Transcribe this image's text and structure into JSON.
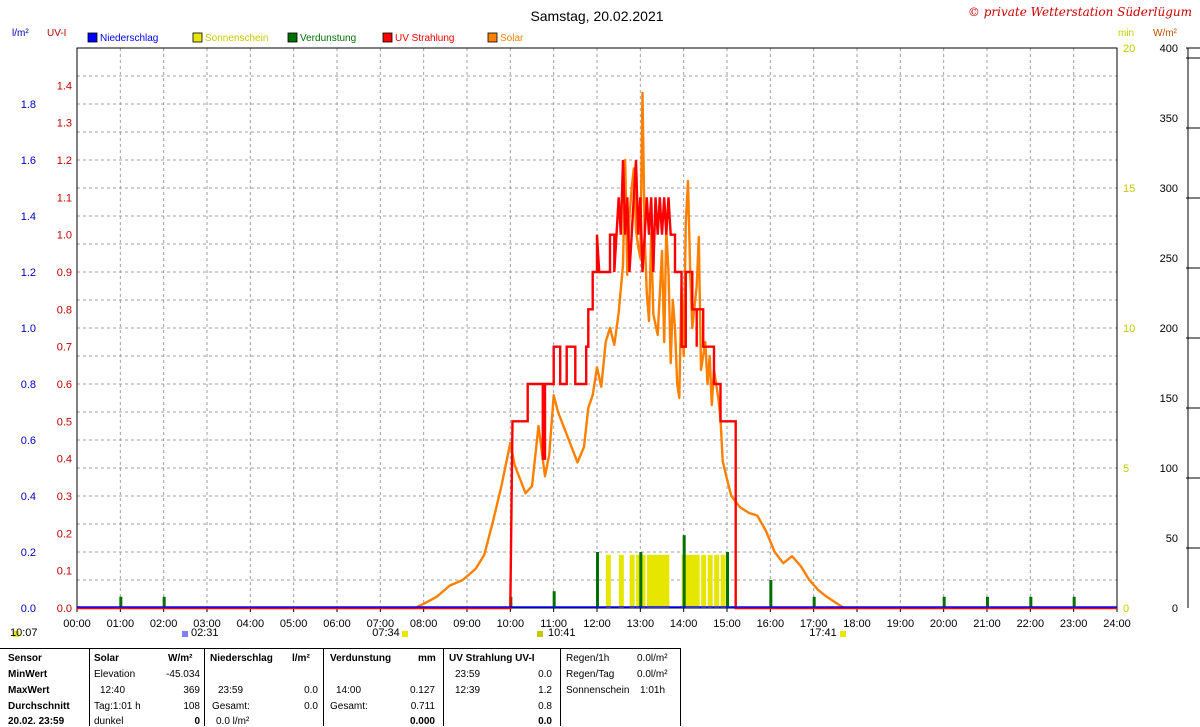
{
  "title": "Samstag, 20.02.2021",
  "copyright": "© private Wetterstation Süderlügum",
  "left_units": [
    "l/m²",
    "UV-I"
  ],
  "right_units": [
    "min",
    "W/m²"
  ],
  "legend": [
    {
      "label": "Niederschlag",
      "color": "#0000ff"
    },
    {
      "label": "Sonnenschein",
      "color": "#e6e600"
    },
    {
      "label": "Verdunstung",
      "color": "#007000"
    },
    {
      "label": "UV Strahlung",
      "color": "#ff0000"
    },
    {
      "label": "Solar",
      "color": "#ff8000"
    }
  ],
  "colors": {
    "rain_axis": "#0000c0",
    "uv_axis": "#c00000",
    "sun_axis": "#c8c800",
    "solar": "#ff8000",
    "uv": "#ff0000",
    "sunshine": "#e6e600",
    "evap": "#007000",
    "grid": "#a0a0a0"
  },
  "time_markers": {
    "sunrise": "07:34",
    "sunset": "17:41",
    "moonrise": "10:07",
    "moonset": "02:31",
    "noon": "10:41"
  },
  "chart_data": {
    "type": "line",
    "x_range": [
      "00:00",
      "24:00"
    ],
    "xticks": [
      "00:00",
      "01:00",
      "02:00",
      "03:00",
      "04:00",
      "05:00",
      "06:00",
      "07:00",
      "08:00",
      "09:00",
      "10:00",
      "11:00",
      "12:00",
      "13:00",
      "14:00",
      "15:00",
      "16:00",
      "17:00",
      "18:00",
      "19:00",
      "20:00",
      "21:00",
      "22:00",
      "23:00",
      "24:00"
    ],
    "axes": {
      "rain": {
        "unit": "l/m²",
        "ylim": [
          0,
          2.0
        ],
        "ticks": [
          "0.0",
          "0.2",
          "0.4",
          "0.6",
          "0.8",
          "1.0",
          "1.2",
          "1.4",
          "1.6",
          "1.8"
        ]
      },
      "uv": {
        "unit": "UV-I",
        "ylim": [
          0,
          1.5
        ],
        "ticks": [
          "0.0",
          "0.1",
          "0.2",
          "0.3",
          "0.4",
          "0.5",
          "0.6",
          "0.7",
          "0.8",
          "0.9",
          "1.0",
          "1.1",
          "1.2",
          "1.3",
          "1.4"
        ]
      },
      "sunshine": {
        "unit": "min",
        "ylim": [
          0,
          20
        ],
        "ticks": [
          "0",
          "5",
          "10",
          "15",
          "20"
        ]
      },
      "solar": {
        "unit": "W/m²",
        "ylim": [
          0,
          400
        ],
        "ticks": [
          "0",
          "50",
          "100",
          "150",
          "200",
          "250",
          "300",
          "350",
          "400"
        ]
      }
    },
    "series": [
      {
        "name": "Solar",
        "unit": "W/m²",
        "points": [
          [
            7.8,
            0
          ],
          [
            8.0,
            3
          ],
          [
            8.3,
            8
          ],
          [
            8.6,
            16
          ],
          [
            8.9,
            20
          ],
          [
            9.2,
            28
          ],
          [
            9.4,
            38
          ],
          [
            9.6,
            62
          ],
          [
            9.8,
            88
          ],
          [
            9.9,
            103
          ],
          [
            10.0,
            118
          ],
          [
            10.1,
            102
          ],
          [
            10.25,
            90
          ],
          [
            10.35,
            82
          ],
          [
            10.5,
            87
          ],
          [
            10.65,
            130
          ],
          [
            10.8,
            94
          ],
          [
            10.9,
            110
          ],
          [
            11.0,
            152
          ],
          [
            11.1,
            140
          ],
          [
            11.3,
            124
          ],
          [
            11.45,
            112
          ],
          [
            11.55,
            104
          ],
          [
            11.7,
            115
          ],
          [
            11.8,
            143
          ],
          [
            11.9,
            152
          ],
          [
            12.0,
            172
          ],
          [
            12.1,
            158
          ],
          [
            12.2,
            190
          ],
          [
            12.3,
            200
          ],
          [
            12.4,
            188
          ],
          [
            12.5,
            211
          ],
          [
            12.6,
            245
          ],
          [
            12.65,
            320
          ],
          [
            12.7,
            238
          ],
          [
            12.75,
            280
          ],
          [
            12.8,
            300
          ],
          [
            12.85,
            314
          ],
          [
            12.9,
            270
          ],
          [
            12.95,
            258
          ],
          [
            13.0,
            250
          ],
          [
            13.05,
            368
          ],
          [
            13.1,
            265
          ],
          [
            13.15,
            225
          ],
          [
            13.2,
            205
          ],
          [
            13.25,
            268
          ],
          [
            13.3,
            210
          ],
          [
            13.4,
            195
          ],
          [
            13.5,
            255
          ],
          [
            13.55,
            190
          ],
          [
            13.6,
            270
          ],
          [
            13.65,
            240
          ],
          [
            13.7,
            175
          ],
          [
            13.75,
            220
          ],
          [
            13.8,
            200
          ],
          [
            13.85,
            160
          ],
          [
            13.9,
            150
          ],
          [
            13.95,
            230
          ],
          [
            14.0,
            180
          ],
          [
            14.05,
            275
          ],
          [
            14.1,
            305
          ],
          [
            14.15,
            240
          ],
          [
            14.2,
            200
          ],
          [
            14.3,
            230
          ],
          [
            14.35,
            265
          ],
          [
            14.4,
            170
          ],
          [
            14.5,
            190
          ],
          [
            14.55,
            160
          ],
          [
            14.6,
            180
          ],
          [
            14.65,
            145
          ],
          [
            14.7,
            170
          ],
          [
            14.8,
            150
          ],
          [
            14.85,
            135
          ],
          [
            14.9,
            105
          ],
          [
            15.0,
            92
          ],
          [
            15.1,
            80
          ],
          [
            15.3,
            72
          ],
          [
            15.5,
            68
          ],
          [
            15.7,
            66
          ],
          [
            15.9,
            55
          ],
          [
            16.1,
            40
          ],
          [
            16.3,
            32
          ],
          [
            16.5,
            37
          ],
          [
            16.7,
            30
          ],
          [
            16.9,
            20
          ],
          [
            17.1,
            13
          ],
          [
            17.3,
            8
          ],
          [
            17.5,
            4
          ],
          [
            17.7,
            0
          ]
        ]
      },
      {
        "name": "UV Strahlung",
        "unit": "UV-I",
        "points": [
          [
            0,
            0
          ],
          [
            10.0,
            0
          ],
          [
            10.05,
            0.5
          ],
          [
            10.4,
            0.5
          ],
          [
            10.4,
            0.6
          ],
          [
            10.75,
            0.6
          ],
          [
            10.75,
            0.4
          ],
          [
            10.8,
            0.4
          ],
          [
            10.8,
            0.6
          ],
          [
            11.0,
            0.6
          ],
          [
            11.0,
            0.7
          ],
          [
            11.15,
            0.7
          ],
          [
            11.15,
            0.6
          ],
          [
            11.3,
            0.6
          ],
          [
            11.3,
            0.7
          ],
          [
            11.5,
            0.7
          ],
          [
            11.5,
            0.6
          ],
          [
            11.75,
            0.6
          ],
          [
            11.75,
            0.7
          ],
          [
            11.8,
            0.7
          ],
          [
            11.8,
            0.8
          ],
          [
            11.9,
            0.8
          ],
          [
            11.9,
            0.9
          ],
          [
            12.0,
            0.9
          ],
          [
            12.0,
            1.0
          ],
          [
            12.05,
            0.9
          ],
          [
            12.3,
            0.9
          ],
          [
            12.3,
            1.0
          ],
          [
            12.4,
            1.0
          ],
          [
            12.4,
            0.9
          ],
          [
            12.5,
            1.1
          ],
          [
            12.55,
            1.0
          ],
          [
            12.6,
            1.2
          ],
          [
            12.65,
            1.0
          ],
          [
            12.7,
            1.1
          ],
          [
            12.75,
            0.9
          ],
          [
            12.8,
            1.0
          ],
          [
            12.85,
            1.1
          ],
          [
            12.9,
            1.2
          ],
          [
            12.95,
            1.0
          ],
          [
            13.0,
            1.1
          ],
          [
            13.05,
            0.9
          ],
          [
            13.1,
            1.0
          ],
          [
            13.15,
            1.1
          ],
          [
            13.2,
            1.0
          ],
          [
            13.25,
            1.1
          ],
          [
            13.3,
            0.9
          ],
          [
            13.35,
            1.1
          ],
          [
            13.4,
            1.0
          ],
          [
            13.45,
            1.1
          ],
          [
            13.5,
            1.0
          ],
          [
            13.55,
            1.1
          ],
          [
            13.6,
            1.0
          ],
          [
            13.65,
            1.1
          ],
          [
            13.7,
            1.0
          ],
          [
            13.8,
            1.0
          ],
          [
            13.8,
            0.9
          ],
          [
            13.95,
            0.9
          ],
          [
            13.95,
            0.7
          ],
          [
            14.05,
            0.7
          ],
          [
            14.05,
            0.9
          ],
          [
            14.2,
            0.9
          ],
          [
            14.2,
            0.8
          ],
          [
            14.3,
            0.8
          ],
          [
            14.3,
            0.7
          ],
          [
            14.3,
            0.8
          ],
          [
            14.45,
            0.8
          ],
          [
            14.45,
            0.7
          ],
          [
            14.7,
            0.7
          ],
          [
            14.7,
            0.6
          ],
          [
            14.85,
            0.6
          ],
          [
            14.85,
            0.5
          ],
          [
            15.2,
            0.5
          ],
          [
            15.2,
            0
          ],
          [
            24,
            0
          ]
        ]
      },
      {
        "name": "Sonnenschein",
        "unit": "min",
        "points": [
          [
            12.25,
            1.9
          ],
          [
            12.55,
            1.9
          ],
          [
            12.8,
            1.9
          ],
          [
            12.95,
            1.9
          ],
          [
            13.05,
            1.9
          ],
          [
            13.2,
            1.9
          ],
          [
            13.3,
            1.9
          ],
          [
            13.4,
            1.9
          ],
          [
            13.5,
            1.9
          ],
          [
            13.6,
            1.9
          ],
          [
            14.0,
            1.9
          ],
          [
            14.1,
            1.9
          ],
          [
            14.2,
            1.9
          ],
          [
            14.3,
            1.9
          ],
          [
            14.45,
            1.9
          ],
          [
            14.6,
            1.9
          ],
          [
            14.75,
            1.9
          ],
          [
            14.9,
            1.9
          ]
        ]
      },
      {
        "name": "Verdunstung",
        "unit": "l/m²",
        "points": [
          [
            1.0,
            0.004
          ],
          [
            2.0,
            0.004
          ],
          [
            10.0,
            0.004
          ],
          [
            11.0,
            0.006
          ],
          [
            12.0,
            0.02
          ],
          [
            13.0,
            0.02
          ],
          [
            14.0,
            0.026
          ],
          [
            15.0,
            0.02
          ],
          [
            16.0,
            0.01
          ],
          [
            17.0,
            0.004
          ],
          [
            20.0,
            0.004
          ],
          [
            21.0,
            0.004
          ],
          [
            22.0,
            0.004
          ],
          [
            23.0,
            0.004
          ]
        ]
      }
    ]
  },
  "stats": {
    "row_labels": [
      "Sensor",
      "MinWert",
      "MaxWert",
      "Durchschnitt",
      "20.02. 23:59"
    ],
    "solar": {
      "header": "Solar",
      "unit": "W/m²",
      "rows": [
        [
          "Elevation",
          "-45.034"
        ],
        [
          "12:40",
          "369"
        ],
        [
          "Tag:1:01 h",
          "108"
        ],
        [
          "dunkel",
          "0"
        ]
      ]
    },
    "rain": {
      "header": "Niederschlag",
      "unit": "l/m²",
      "rows": [
        [
          "",
          ""
        ],
        [
          "23:59",
          "0.0"
        ],
        [
          "Gesamt:",
          "0.0"
        ],
        [
          "0.0 l/m²",
          ""
        ]
      ]
    },
    "evap": {
      "header": "Verdunstung",
      "unit": "mm",
      "rows": [
        [
          "",
          ""
        ],
        [
          "14:00",
          "0.127"
        ],
        [
          "Gesamt:",
          "0.711"
        ],
        [
          "",
          "0.000"
        ]
      ]
    },
    "uv": {
      "header": "UV Strahlung UV-I",
      "rows": [
        [
          "23:59",
          "0.0"
        ],
        [
          "12:39",
          "1.2"
        ],
        [
          "",
          "0.8"
        ],
        [
          "",
          "0.0"
        ]
      ]
    },
    "extra": {
      "rows": [
        [
          "Regen/1h",
          "0.0l/m²"
        ],
        [
          "Regen/Tag",
          "0.0l/m²"
        ],
        [
          "Sonnenschein",
          "1:01h"
        ]
      ]
    }
  }
}
